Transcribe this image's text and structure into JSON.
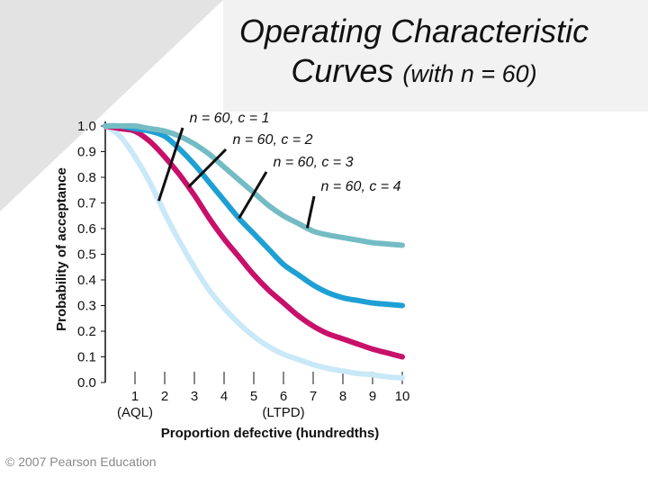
{
  "slide": {
    "title_line1": "Operating Characteristic",
    "title_line2_main": "Curves",
    "title_line2_suffix": "(with n = 60)",
    "copyright": "© 2007 Pearson Education"
  },
  "chart_data": {
    "type": "line",
    "ylabel": "Probability of acceptance",
    "xlabel": "Proportion defective (hundredths)",
    "xlim": [
      0,
      10
    ],
    "ylim": [
      0.0,
      1.0
    ],
    "x_ticks": [
      1,
      2,
      3,
      4,
      5,
      6,
      7,
      8,
      9,
      10
    ],
    "x_tick_labels": [
      "1",
      "2",
      "3",
      "4",
      "5",
      "6",
      "7",
      "8",
      "9",
      "10"
    ],
    "x_tick_sublabels": [
      {
        "x": 1,
        "text": "(AQL)"
      },
      {
        "x": 6,
        "text": "(LTPD)"
      }
    ],
    "y_ticks": [
      0.0,
      0.1,
      0.2,
      0.3,
      0.4,
      0.5,
      0.6,
      0.7,
      0.8,
      0.9,
      1.0
    ],
    "y_tick_labels": [
      "0.0",
      "0.1",
      "0.2",
      "0.3",
      "0.4",
      "0.5",
      "0.6",
      "0.7",
      "0.8",
      "0.9",
      "1.0"
    ],
    "x": [
      0,
      0.5,
      1,
      1.5,
      2,
      2.5,
      3,
      3.5,
      4,
      4.5,
      5,
      5.5,
      6,
      6.5,
      7,
      7.5,
      8,
      8.5,
      9,
      9.5,
      10
    ],
    "series": [
      {
        "name": "n = 60, c = 1",
        "color": "#c9e8f8",
        "values": [
          1.0,
          0.96,
          0.88,
          0.78,
          0.66,
          0.55,
          0.45,
          0.36,
          0.29,
          0.23,
          0.18,
          0.14,
          0.11,
          0.09,
          0.07,
          0.055,
          0.045,
          0.035,
          0.03,
          0.022,
          0.018
        ]
      },
      {
        "name": "n = 60, c = 2",
        "color": "#c8106a",
        "values": [
          1.0,
          0.99,
          0.98,
          0.94,
          0.88,
          0.81,
          0.73,
          0.64,
          0.56,
          0.49,
          0.42,
          0.36,
          0.31,
          0.26,
          0.22,
          0.19,
          0.17,
          0.15,
          0.13,
          0.115,
          0.1
        ]
      },
      {
        "name": "n = 60, c = 3",
        "color": "#1ea0d4",
        "values": [
          1.0,
          1.0,
          0.99,
          0.98,
          0.96,
          0.91,
          0.85,
          0.78,
          0.71,
          0.64,
          0.58,
          0.52,
          0.46,
          0.42,
          0.38,
          0.35,
          0.33,
          0.32,
          0.31,
          0.305,
          0.3
        ]
      },
      {
        "name": "n = 60, c = 4",
        "color": "#74bcc4",
        "values": [
          1.0,
          1.0,
          1.0,
          0.99,
          0.98,
          0.96,
          0.93,
          0.89,
          0.84,
          0.79,
          0.74,
          0.69,
          0.65,
          0.62,
          0.59,
          0.575,
          0.565,
          0.555,
          0.545,
          0.54,
          0.535
        ]
      }
    ],
    "annotations": [
      {
        "text": "n = 60, c = 1",
        "series": 0,
        "at_x": 1.8
      },
      {
        "text": "n = 60, c = 2",
        "series": 1,
        "at_x": 2.8
      },
      {
        "text": "n = 60, c = 3",
        "series": 2,
        "at_x": 4.5
      },
      {
        "text": "n = 60, c = 4",
        "series": 3,
        "at_x": 6.8
      }
    ],
    "grid": false
  }
}
